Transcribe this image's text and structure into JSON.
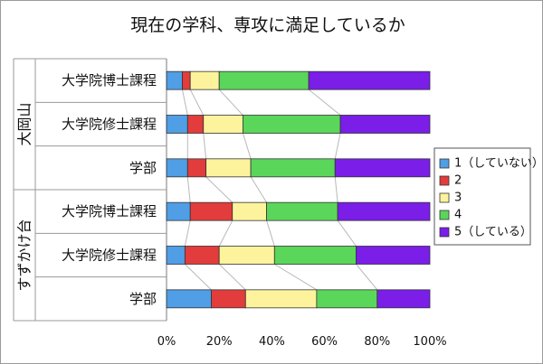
{
  "chart_data": {
    "type": "bar",
    "orientation": "horizontal",
    "stacked": "percent",
    "title": "現在の学科、専攻に満足しているか",
    "groups": [
      {
        "name": "大岡山",
        "categories": [
          "大学院博士課程",
          "大学院修士課程",
          "学部"
        ]
      },
      {
        "name": "すずかけ台",
        "categories": [
          "大学院博士課程",
          "大学院修士課程",
          "学部"
        ]
      }
    ],
    "categories": [
      "大学院博士課程",
      "大学院修士課程",
      "学部",
      "大学院博士課程",
      "大学院修士課程",
      "学部"
    ],
    "series": [
      {
        "name": "1（していない）",
        "color": "#4f9ee6",
        "values": [
          6,
          8,
          8,
          9,
          7,
          17
        ]
      },
      {
        "name": "2",
        "color": "#e23c3c",
        "values": [
          3,
          6,
          7,
          16,
          13,
          13
        ]
      },
      {
        "name": "3",
        "color": "#fcf39c",
        "values": [
          11,
          15,
          17,
          13,
          21,
          27
        ]
      },
      {
        "name": "4",
        "color": "#5ad65a",
        "values": [
          34,
          37,
          32,
          27,
          31,
          23
        ]
      },
      {
        "name": "5（している）",
        "color": "#7a1ee8",
        "values": [
          46,
          34,
          36,
          35,
          28,
          20
        ]
      }
    ],
    "xticks": [
      "0%",
      "20%",
      "40%",
      "60%",
      "80%",
      "100%"
    ],
    "xlim": [
      0,
      100
    ],
    "legend": "right",
    "series_lines": true
  }
}
